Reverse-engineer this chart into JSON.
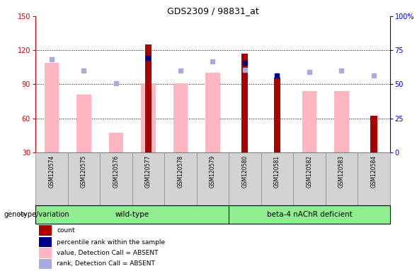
{
  "title": "GDS2309 / 98831_at",
  "samples": [
    "GSM120574",
    "GSM120575",
    "GSM120576",
    "GSM120577",
    "GSM120578",
    "GSM120579",
    "GSM120580",
    "GSM120581",
    "GSM120582",
    "GSM120583",
    "GSM120584"
  ],
  "count_values": [
    null,
    null,
    null,
    125,
    null,
    null,
    117,
    96,
    null,
    null,
    62
  ],
  "absent_values": [
    109,
    81,
    47,
    91,
    91,
    100,
    null,
    null,
    84,
    84,
    null
  ],
  "percentile_present": [
    null,
    null,
    null,
    113,
    null,
    null,
    109,
    98,
    null,
    null,
    null
  ],
  "percentile_absent": [
    112,
    102,
    91,
    null,
    102,
    110,
    103,
    null,
    101,
    102,
    98
  ],
  "ylim_left": [
    30,
    150
  ],
  "ylim_right": [
    0,
    100
  ],
  "yticks_left": [
    30,
    60,
    90,
    120,
    150
  ],
  "yticks_right": [
    0,
    25,
    50,
    75,
    100
  ],
  "left_color": "#CC0000",
  "right_color": "#0000CC",
  "absent_bar_color": "#FFB6C1",
  "count_bar_color": "#AA0000",
  "percentile_present_color": "#00008B",
  "percentile_absent_color": "#AAAADD",
  "group1_label": "wild-type",
  "group2_label": "beta-4 nAChR deficient",
  "group_color": "#90EE90",
  "legend_labels": [
    "count",
    "percentile rank within the sample",
    "value, Detection Call = ABSENT",
    "rank, Detection Call = ABSENT"
  ],
  "legend_colors": [
    "#AA0000",
    "#00008B",
    "#FFB6C1",
    "#AAAADD"
  ],
  "geno_label": "genotype/variation",
  "gridline_color": "black",
  "gridlines": [
    60,
    90,
    120
  ],
  "bw_absent": 0.45,
  "bw_count": 0.2
}
